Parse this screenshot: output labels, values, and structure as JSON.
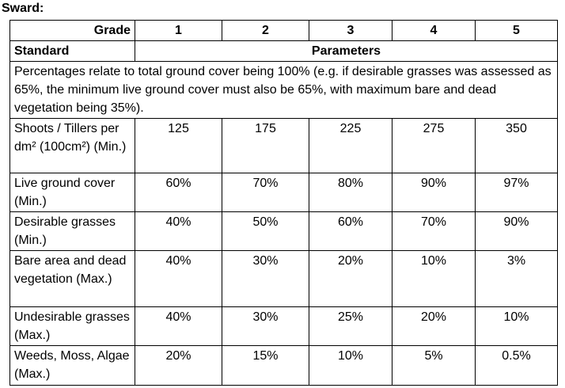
{
  "title": "Sward:",
  "table": {
    "header": {
      "label": "Grade",
      "grades": [
        "1",
        "2",
        "3",
        "4",
        "5"
      ]
    },
    "subheader": {
      "standard": "Standard",
      "parameters": "Parameters"
    },
    "note": "Percentages relate to total ground cover being 100% (e.g. if desirable grasses was assessed as 65%, the minimum live ground cover must also be 65%, with maximum bare and dead vegetation being 35%).",
    "rows": [
      {
        "standard": "Shoots / Tillers per dm² (100cm²) (Min.)",
        "values": [
          "125",
          "175",
          "225",
          "275",
          "350"
        ]
      },
      {
        "standard": "Live ground cover (Min.)",
        "values": [
          "60%",
          "70%",
          "80%",
          "90%",
          "97%"
        ]
      },
      {
        "standard": "Desirable grasses (Min.)",
        "values": [
          "40%",
          "50%",
          "60%",
          "70%",
          "90%"
        ]
      },
      {
        "standard": "Bare area and dead vegetation (Max.)",
        "values": [
          "40%",
          "30%",
          "20%",
          "10%",
          "3%"
        ]
      },
      {
        "standard": "Undesirable grasses (Max.)",
        "values": [
          "40%",
          "30%",
          "25%",
          "20%",
          "10%"
        ]
      },
      {
        "standard": "Weeds, Moss, Algae (Max.)",
        "values": [
          "20%",
          "15%",
          "10%",
          "5%",
          "0.5%"
        ]
      }
    ]
  }
}
